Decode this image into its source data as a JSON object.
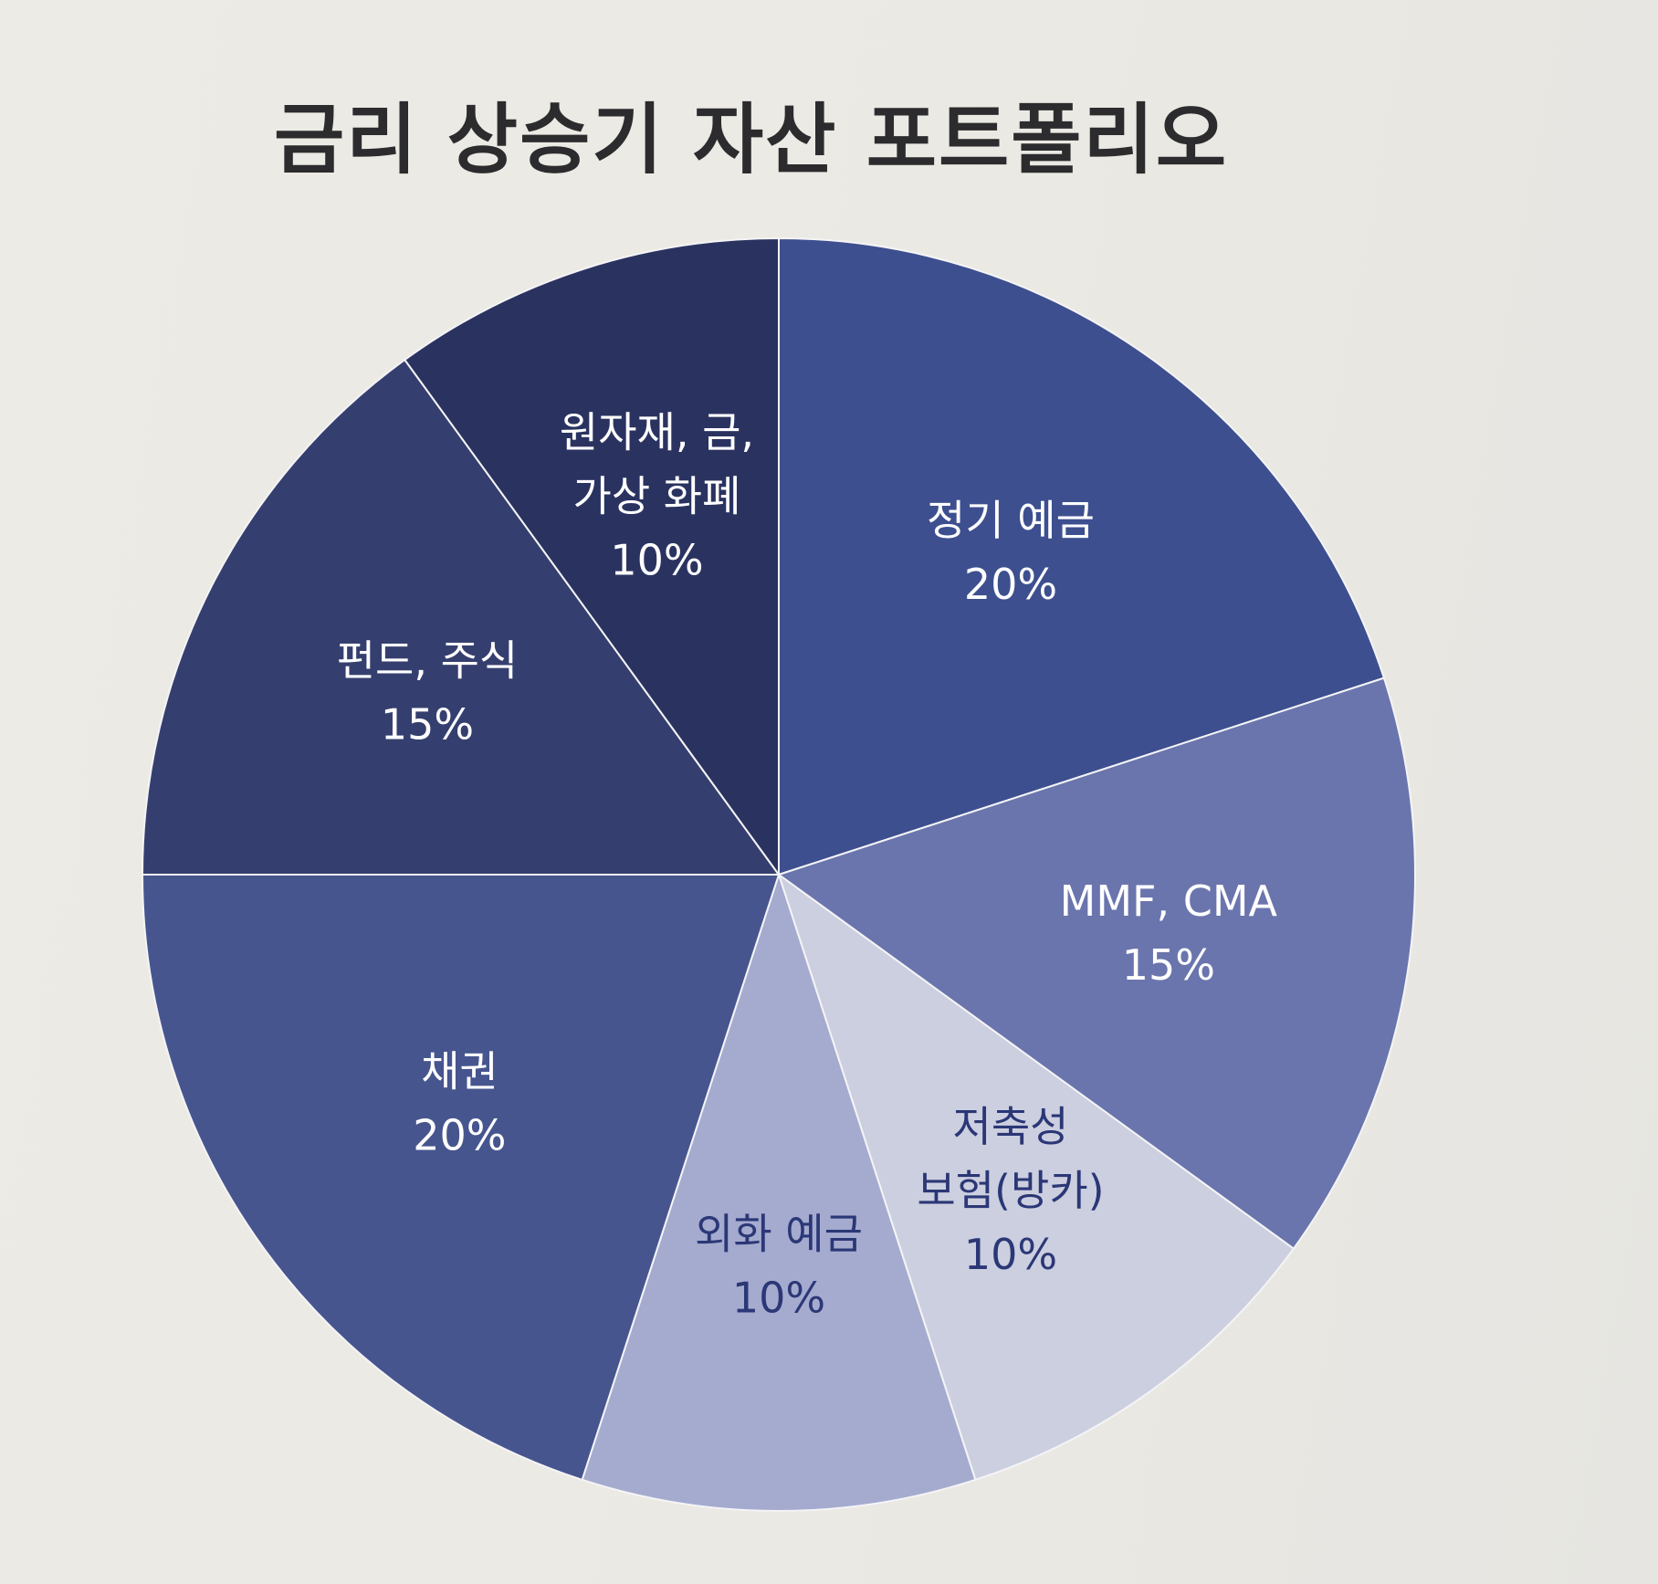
{
  "chart_data": {
    "type": "pie",
    "title": "금리 상승기 자산 포트폴리오",
    "slices": [
      {
        "label_lines": [
          "정기 예금"
        ],
        "value_label": "20%",
        "value": 20,
        "color": "#3d4f8f",
        "text_color": "#ffffff"
      },
      {
        "label_lines": [
          "MMF, CMA"
        ],
        "value_label": "15%",
        "value": 15,
        "color": "#6a75ad",
        "text_color": "#ffffff"
      },
      {
        "label_lines": [
          "저축성",
          "보험(방카)"
        ],
        "value_label": "10%",
        "value": 10,
        "color": "#cccfdf",
        "text_color": "#2b3776"
      },
      {
        "label_lines": [
          "외화 예금"
        ],
        "value_label": "10%",
        "value": 10,
        "color": "#a5abcf",
        "text_color": "#2b3776"
      },
      {
        "label_lines": [
          "채권"
        ],
        "value_label": "20%",
        "value": 20,
        "color": "#47558f",
        "text_color": "#ffffff"
      },
      {
        "label_lines": [
          "펀드, 주식"
        ],
        "value_label": "15%",
        "value": 15,
        "color": "#353f6f",
        "text_color": "#ffffff"
      },
      {
        "label_lines": [
          "원자재, 금,",
          "가상 화폐"
        ],
        "value_label": "10%",
        "value": 10,
        "color": "#2a3360",
        "text_color": "#ffffff"
      }
    ]
  }
}
